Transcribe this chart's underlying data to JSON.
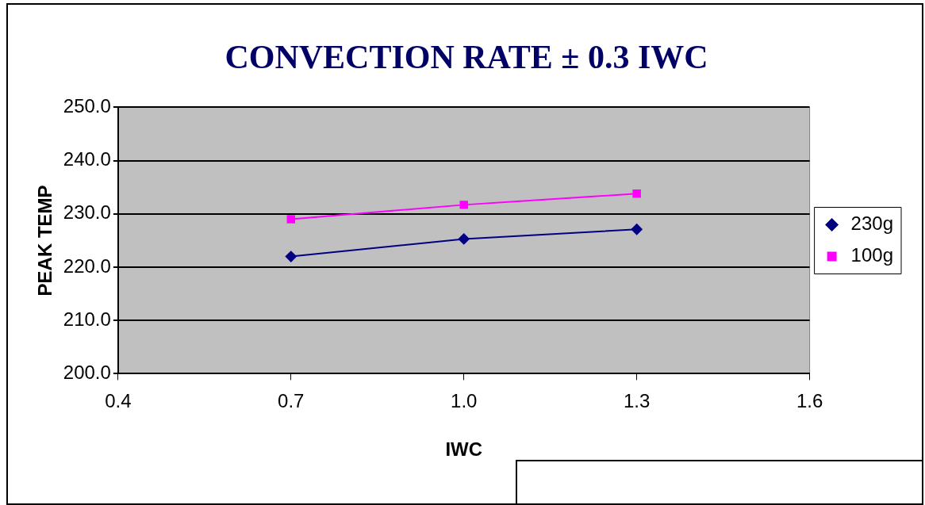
{
  "chart_data": {
    "type": "line",
    "title": "CONVECTION RATE ± 0.3 IWC",
    "xlabel": "IWC",
    "ylabel": "PEAK TEMP",
    "x": [
      0.7,
      1.0,
      1.3
    ],
    "series": [
      {
        "name": "230g",
        "color": "#000080",
        "marker": "diamond",
        "values": [
          222.0,
          225.3,
          227.1
        ]
      },
      {
        "name": "100g",
        "color": "#ff00ff",
        "marker": "square",
        "values": [
          229.0,
          231.7,
          233.8
        ]
      }
    ],
    "xlim": [
      0.4,
      1.6
    ],
    "xticks": [
      0.4,
      0.7,
      {
        "value": 1.0,
        "label": "1.0"
      },
      1.3,
      1.6
    ],
    "ylim": [
      200,
      250
    ],
    "yticks": [
      {
        "value": 200,
        "label": "200.0"
      },
      {
        "value": 210,
        "label": "210.0"
      },
      {
        "value": 220,
        "label": "220.0"
      },
      {
        "value": 230,
        "label": "230.0"
      },
      {
        "value": 240,
        "label": "240.0"
      },
      {
        "value": 250,
        "label": "250.0"
      }
    ],
    "grid": "y",
    "legend": "right",
    "line_style": "solid"
  }
}
